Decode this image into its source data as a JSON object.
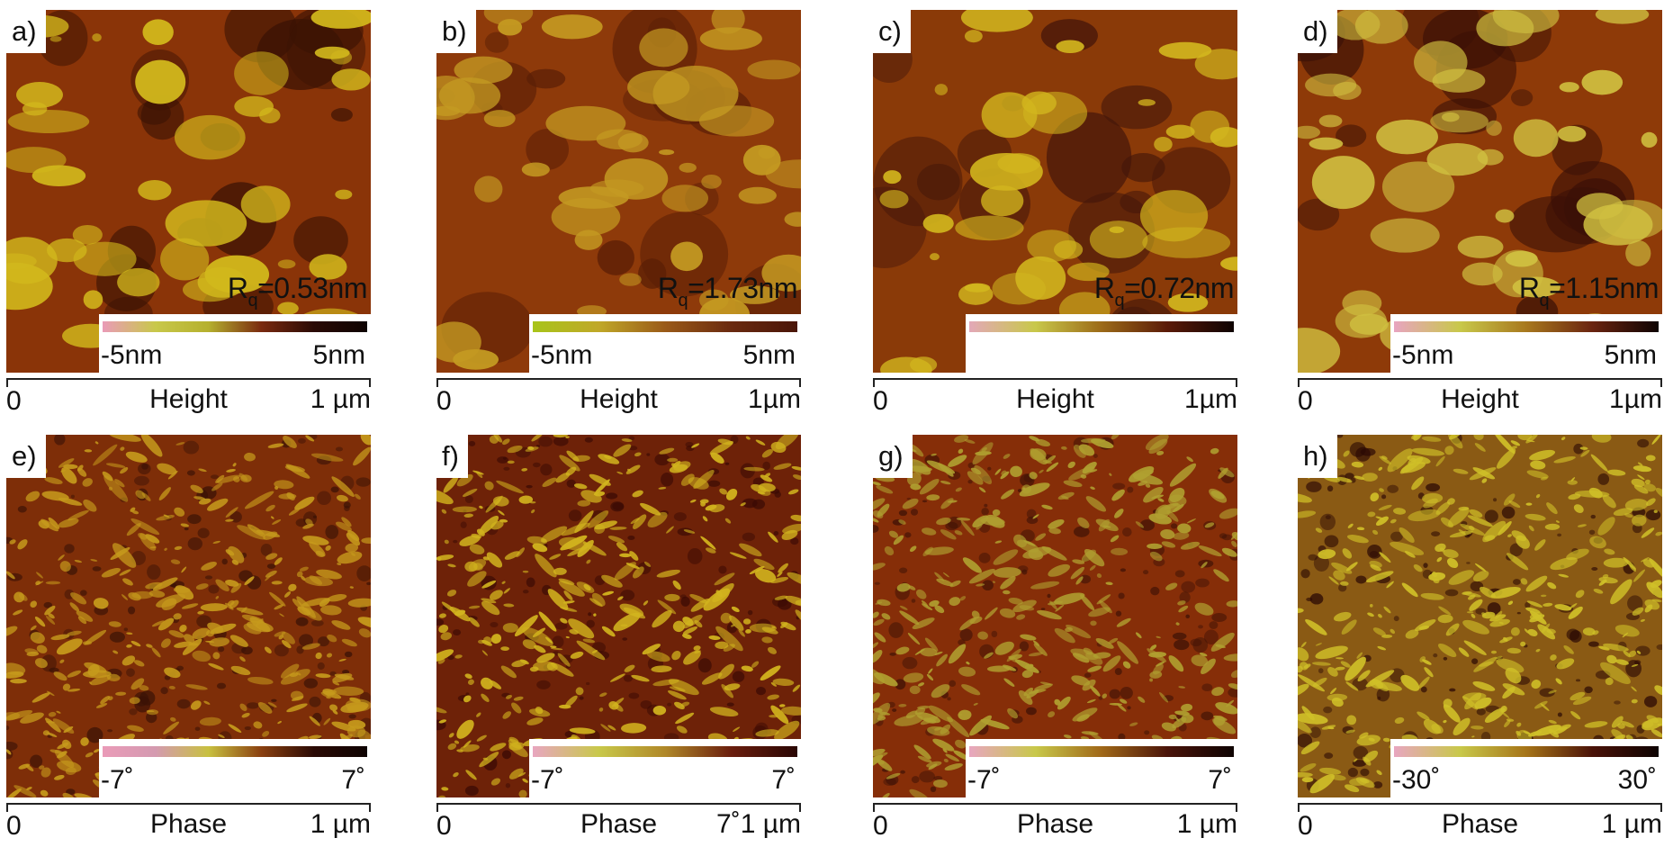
{
  "panels": [
    {
      "letter": "a)",
      "rq_text": "=0.53nm",
      "min": "-5nm",
      "max": "5nm",
      "ax_start": "0",
      "ax_name": "Height",
      "ax_end": "1 µm",
      "colorbar_palette": "pink-high",
      "colorbar": [
        "#ea9bb8",
        "#c8c84a",
        "#b5b02e",
        "#7a2a10",
        "#2a0a05",
        "#0e0302"
      ],
      "img_colors": [
        "#8a3408",
        "#d2b81c",
        "#3a1204"
      ]
    },
    {
      "letter": "b)",
      "rq_text": "=1.73nm",
      "min": "-5nm",
      "max": "5nm",
      "ax_start": "0",
      "ax_name": "Height",
      "ax_end": "1µm",
      "colorbar_palette": "green-high",
      "colorbar": [
        "#a8c41a",
        "#c0a828",
        "#9a5a18",
        "#6a2a10",
        "#4a1508"
      ],
      "img_colors": [
        "#8e3a0a",
        "#c49a22",
        "#5a1e06"
      ]
    },
    {
      "letter": "c)",
      "rq_text": "=0.72nm",
      "min": "",
      "max": "",
      "ax_start": "0",
      "ax_name": "Height",
      "ax_end": "1µm",
      "colorbar_palette": "pink-high",
      "colorbar": [
        "#e3a8b8",
        "#c8c84a",
        "#9c6a18",
        "#5a1a08",
        "#0e0302"
      ],
      "img_colors": [
        "#8a3a08",
        "#d2b61e",
        "#44160a"
      ]
    },
    {
      "letter": "d)",
      "rq_text": "=1.15nm",
      "min": "-5nm",
      "max": "5nm",
      "ax_start": "0",
      "ax_name": "Height",
      "ax_end": "1µm",
      "colorbar_palette": "pink-high",
      "colorbar": [
        "#e8a4c0",
        "#c8c84a",
        "#a8781e",
        "#6a2410",
        "#0e0302"
      ],
      "img_colors": [
        "#8e3a08",
        "#d0c040",
        "#3a1006"
      ]
    },
    {
      "letter": "e)",
      "rq_text": "",
      "min": "-7˚",
      "max": "7˚",
      "ax_start": "0",
      "ax_name": "Phase",
      "ax_end": "1 µm",
      "colorbar_palette": "pink-high",
      "colorbar": [
        "#ea9bb8",
        "#d49ab0",
        "#c8c040",
        "#8a4010",
        "#2a0a05",
        "#0e0302"
      ],
      "img_colors": [
        "#7e2e08",
        "#c69a1c",
        "#3a1206"
      ]
    },
    {
      "letter": "f)",
      "rq_text": "",
      "min": "-7˚",
      "max": "7˚",
      "ax_start": "0",
      "ax_name": "Phase",
      "ax_end": "7˚1 µm",
      "colorbar_palette": "pink-high",
      "colorbar": [
        "#e8a6c0",
        "#c8c84a",
        "#b08828",
        "#6a1e0e",
        "#2a0604"
      ],
      "img_colors": [
        "#6e2208",
        "#d2b41e",
        "#3a0a04"
      ]
    },
    {
      "letter": "g)",
      "rq_text": "",
      "min": "-7˚",
      "max": "7˚",
      "ax_start": "0",
      "ax_name": "Phase",
      "ax_end": "1 µm",
      "colorbar_palette": "pink-high",
      "colorbar": [
        "#e8a6c0",
        "#c8c84a",
        "#a06818",
        "#4a140a",
        "#0e0302"
      ],
      "img_colors": [
        "#862e08",
        "#b0a030",
        "#3e1206"
      ]
    },
    {
      "letter": "h)",
      "rq_text": "",
      "min": "-30˚",
      "max": "30˚",
      "ax_start": "0",
      "ax_name": "Phase",
      "ax_end": "1 µm",
      "colorbar_palette": "pink-high",
      "colorbar": [
        "#e8a6c0",
        "#c8c84a",
        "#a67418",
        "#4a1208",
        "#0e0302"
      ],
      "img_colors": [
        "#8a5a14",
        "#d0c028",
        "#2a0804"
      ]
    }
  ]
}
